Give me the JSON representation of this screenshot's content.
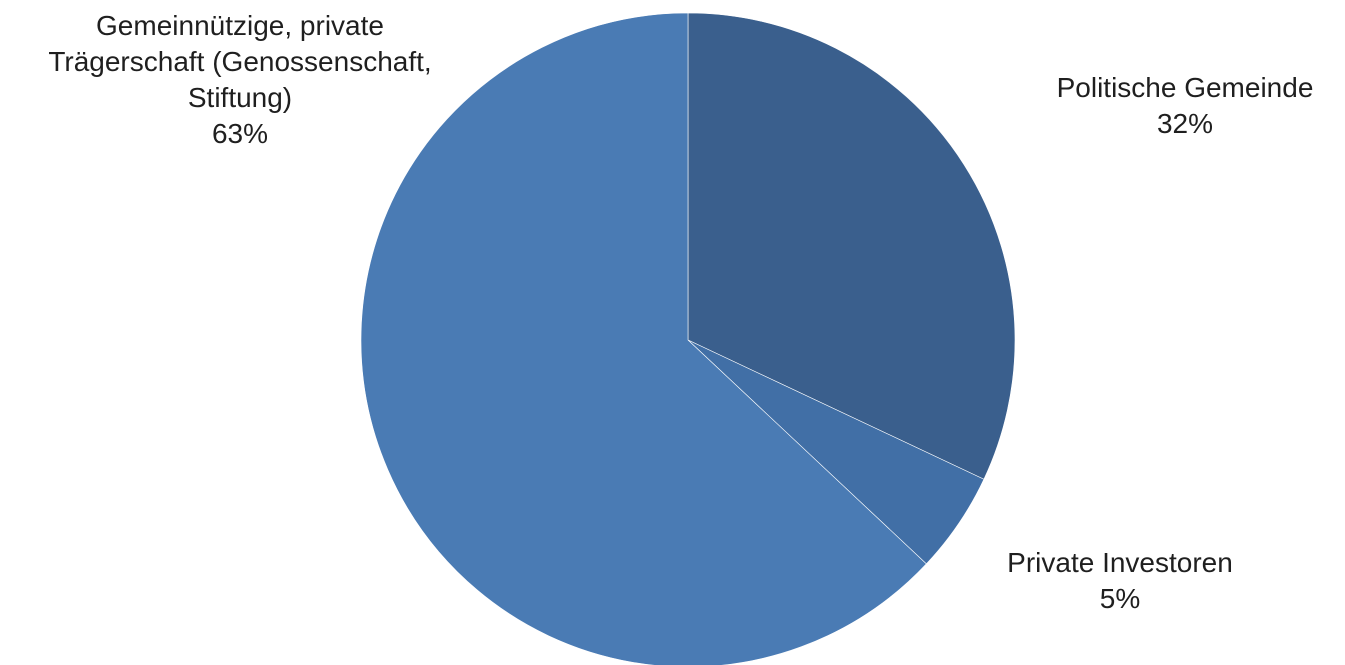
{
  "chart_data": {
    "type": "pie",
    "title": "",
    "slices": [
      {
        "label": "Politische Gemeinde",
        "value": 32,
        "value_label": "32%",
        "color": "#3a5f8d"
      },
      {
        "label": "Private Investoren",
        "value": 5,
        "value_label": "5%",
        "color": "#416fa6"
      },
      {
        "label": "Gemeinnützige, private Trägerschaft (Genossenschaft, Stiftung)",
        "value": 63,
        "value_label": "63%",
        "color": "#4a7bb4"
      }
    ],
    "start_angle": "12 o'clock",
    "direction": "clockwise",
    "legend": "none"
  },
  "labels": {
    "slice_0": {
      "lines": [
        "Politische Gemeinde"
      ],
      "percent": "32%"
    },
    "slice_1": {
      "lines": [
        "Private Investoren"
      ],
      "percent": "5%"
    },
    "slice_2": {
      "lines": [
        "Gemeinnützige, private",
        "Trägerschaft (Genossenschaft,",
        "Stiftung)"
      ],
      "percent": "63%"
    }
  }
}
